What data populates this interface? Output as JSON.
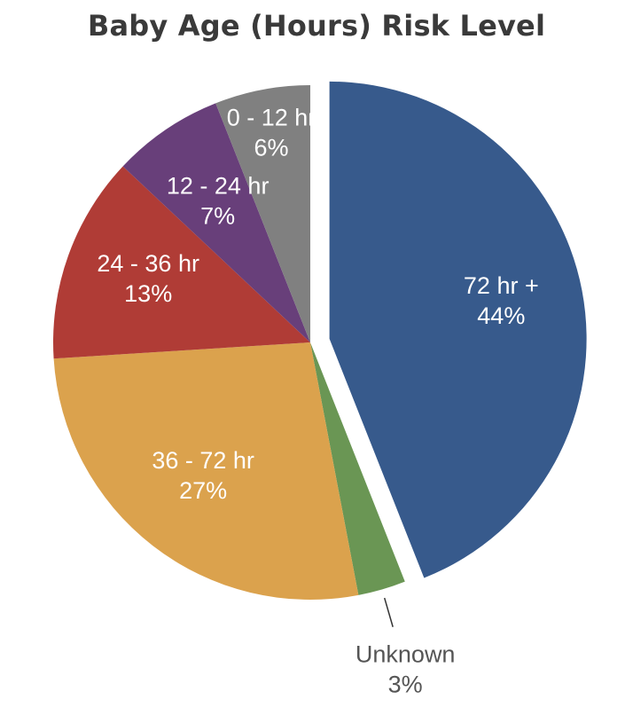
{
  "chart_data": {
    "type": "pie",
    "title": "Baby Age (Hours) Risk Level",
    "slices": [
      {
        "label": "72 hr +",
        "value": 44,
        "value_label": "44%",
        "color": "#375a8c",
        "exploded": true
      },
      {
        "label": "Unknown",
        "value": 3,
        "value_label": "3%",
        "color": "#6a9654"
      },
      {
        "label": "36 - 72 hr",
        "value": 27,
        "value_label": "27%",
        "color": "#dba24d"
      },
      {
        "label": "24 - 36 hr",
        "value": 13,
        "value_label": "13%",
        "color": "#b03c36"
      },
      {
        "label": "12 - 24 hr",
        "value": 7,
        "value_label": "7%",
        "color": "#683f7a"
      },
      {
        "label": "0 - 12 hr",
        "value": 6,
        "value_label": "6%",
        "color": "#808080"
      }
    ],
    "start": "12 o'clock",
    "direction": "clockwise",
    "legend": "none"
  }
}
